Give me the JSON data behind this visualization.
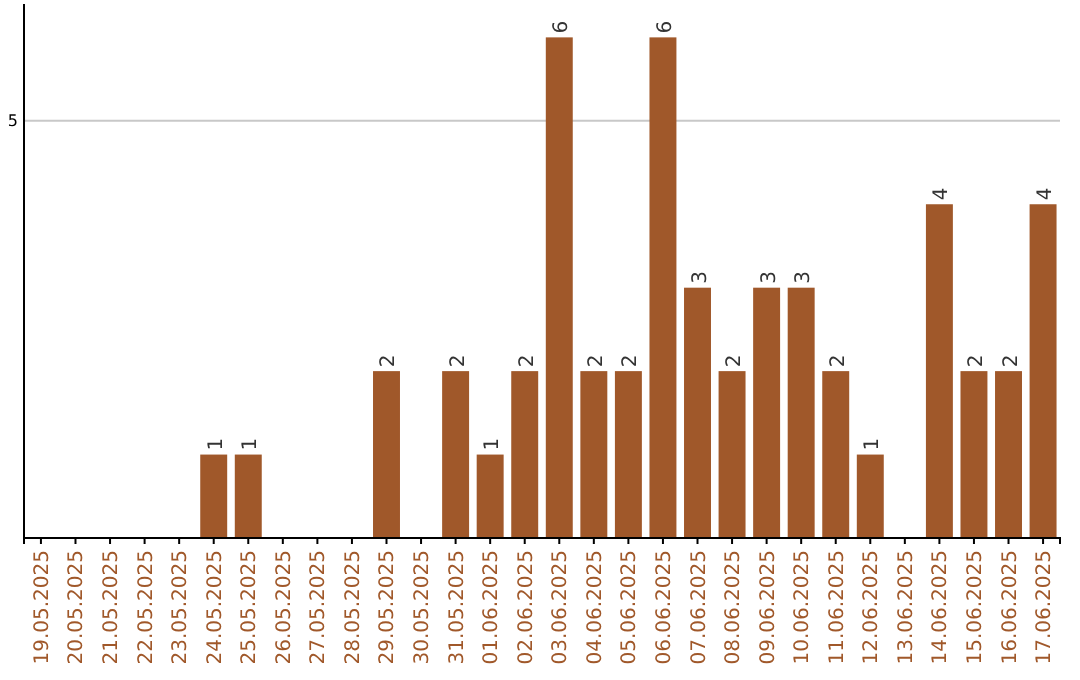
{
  "chart_data": {
    "type": "bar",
    "categories": [
      "19.05.2025",
      "20.05.2025",
      "21.05.2025",
      "22.05.2025",
      "23.05.2025",
      "24.05.2025",
      "25.05.2025",
      "26.05.2025",
      "27.05.2025",
      "28.05.2025",
      "29.05.2025",
      "30.05.2025",
      "31.05.2025",
      "01.06.2025",
      "02.06.2025",
      "03.06.2025",
      "04.06.2025",
      "05.06.2025",
      "06.06.2025",
      "07.06.2025",
      "08.06.2025",
      "09.06.2025",
      "10.06.2025",
      "11.06.2025",
      "12.06.2025",
      "13.06.2025",
      "14.06.2025",
      "15.06.2025",
      "16.06.2025",
      "17.06.2025"
    ],
    "values": [
      0,
      0,
      0,
      0,
      0,
      1,
      1,
      0,
      0,
      0,
      2,
      0,
      2,
      1,
      2,
      6,
      2,
      2,
      6,
      3,
      2,
      3,
      3,
      2,
      1,
      0,
      4,
      2,
      2,
      4
    ],
    "value_labels": [
      null,
      null,
      null,
      null,
      null,
      "1",
      "1",
      null,
      null,
      null,
      "2",
      null,
      "2",
      "1",
      "2",
      "6",
      "2",
      "2",
      "6",
      "3",
      "2",
      "3",
      "3",
      "2",
      "1",
      null,
      "4",
      "2",
      "2",
      "4"
    ],
    "color": "#a0582a",
    "ylim": [
      0,
      6.4
    ],
    "yticks": [
      5
    ],
    "grid": "y"
  }
}
